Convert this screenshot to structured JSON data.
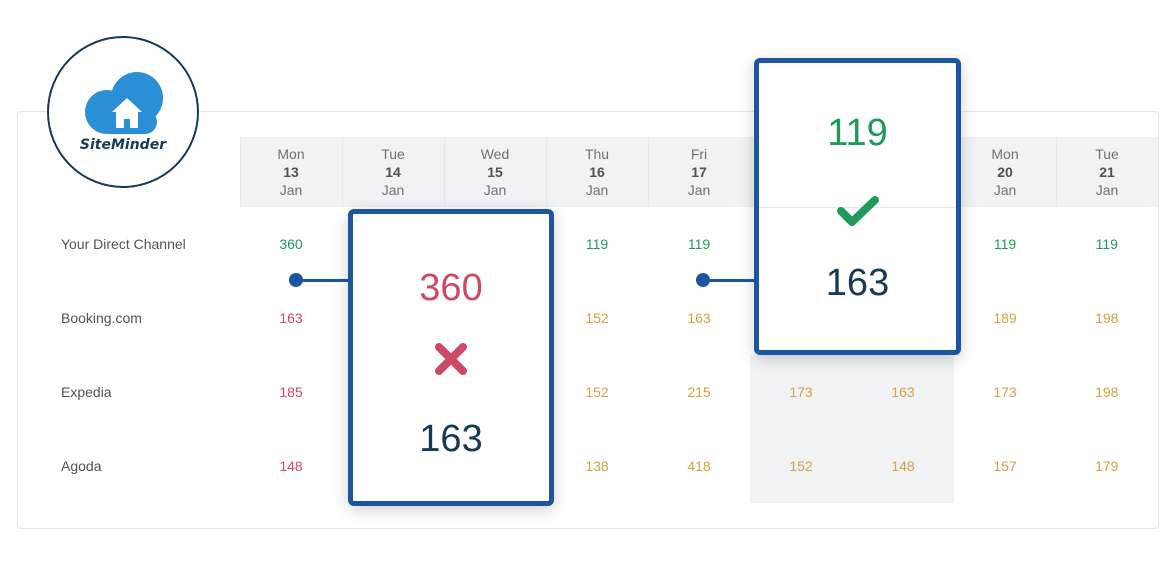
{
  "brand": {
    "name": "SiteMinder"
  },
  "days": [
    {
      "dow": "Mon",
      "num": "13",
      "mon": "Jan"
    },
    {
      "dow": "Tue",
      "num": "14",
      "mon": "Jan"
    },
    {
      "dow": "Wed",
      "num": "15",
      "mon": "Jan"
    },
    {
      "dow": "Thu",
      "num": "16",
      "mon": "Jan"
    },
    {
      "dow": "Fri",
      "num": "17",
      "mon": "Jan"
    },
    {
      "dow": "",
      "num": "",
      "mon": ""
    },
    {
      "dow": "",
      "num": "",
      "mon": ""
    },
    {
      "dow": "Mon",
      "num": "20",
      "mon": "Jan"
    },
    {
      "dow": "Tue",
      "num": "21",
      "mon": "Jan"
    }
  ],
  "rows": [
    {
      "channel": "Your Direct Channel",
      "values": [
        "360",
        "",
        "",
        "119",
        "119",
        "",
        "",
        "119",
        "119"
      ]
    },
    {
      "channel": "Booking.com",
      "values": [
        "163",
        "",
        "",
        "152",
        "163",
        "",
        "",
        "189",
        "198"
      ]
    },
    {
      "channel": "Expedia",
      "values": [
        "185",
        "",
        "",
        "152",
        "215",
        "173",
        "163",
        "173",
        "198"
      ]
    },
    {
      "channel": "Agoda",
      "values": [
        "148",
        "",
        "",
        "138",
        "418",
        "152",
        "148",
        "157",
        "179"
      ]
    }
  ],
  "popup_bad": {
    "direct_rate": "360",
    "ota_rate": "163",
    "icon": "cross-icon",
    "color": "#cd4966"
  },
  "popup_good": {
    "direct_rate": "119",
    "ota_rate": "163",
    "icon": "check-icon",
    "color": "#1f9a5a"
  },
  "colors": {
    "accent": "#1b56a0",
    "green": "#1f9a5a",
    "red": "#cd4966",
    "amber": "#d1a23f"
  }
}
